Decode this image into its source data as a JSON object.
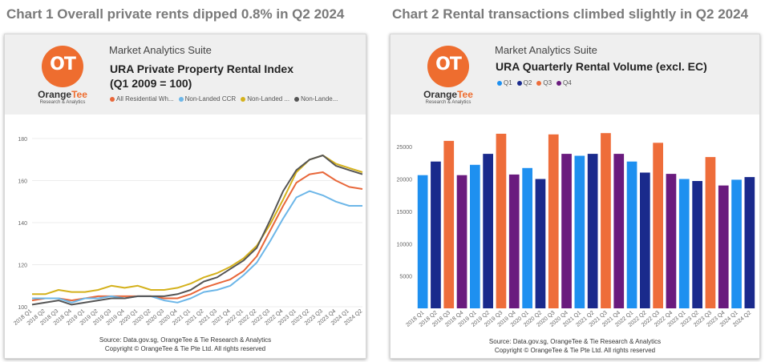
{
  "headings": {
    "chart1": "Chart 1 Overall private rents dipped 0.8% in Q2 2024",
    "chart2": "Chart 2 Rental transactions climbed slightly in Q2 2024"
  },
  "brand": {
    "suite": "Market Analytics Suite",
    "logo_mark": "OT",
    "logo_orange": "Orange",
    "logo_tee": "Tee",
    "logo_sub": "Research & Analytics",
    "color": "#ee6d2f"
  },
  "panel1": {
    "title_line1": "URA Private Property Rental Index",
    "title_line2": "(Q1 2009 = 100)",
    "footer_source": "Source: Data.gov.sg, OrangeTee & Tie Research & Analytics",
    "footer_copyright": "Copyright © OrangeTee & Tie Pte Ltd. All rights reserved"
  },
  "panel2": {
    "title": "URA Quarterly Rental Volume (excl. EC)",
    "footer_source": "Source: Data.gov.sg, OrangeTee & Tie Research & Analytics",
    "footer_copyright": "Copyright © OrangeTee & Tie Pte Ltd. All rights reserved"
  },
  "chart_data": [
    {
      "type": "line",
      "title": "URA Private Property Rental Index",
      "subtitle": "(Q1 2009 = 100)",
      "x": [
        "2018 Q1",
        "2018 Q2",
        "2018 Q3",
        "2018 Q4",
        "2019 Q1",
        "2019 Q2",
        "2019 Q3",
        "2019 Q4",
        "2020 Q1",
        "2020 Q2",
        "2020 Q3",
        "2020 Q4",
        "2021 Q1",
        "2021 Q2",
        "2021 Q3",
        "2021 Q4",
        "2022 Q1",
        "2022 Q2",
        "2022 Q3",
        "2022 Q4",
        "2023 Q1",
        "2023 Q2",
        "2023 Q3",
        "2023 Q4",
        "2024 Q1",
        "2024 Q2"
      ],
      "ylim": [
        100,
        180
      ],
      "yticks": [
        100,
        120,
        140,
        160,
        180
      ],
      "series": [
        {
          "name": "All Residential Wh...",
          "color": "#e8673a",
          "values": [
            103,
            104,
            104,
            103,
            104,
            105,
            105,
            105,
            105,
            105,
            104,
            104,
            106,
            109,
            111,
            113,
            117,
            124,
            136,
            148,
            159,
            163,
            164,
            160,
            157,
            156
          ]
        },
        {
          "name": "Non-Landed CCR",
          "color": "#6cb6e8",
          "values": [
            104,
            104,
            104,
            102,
            104,
            104,
            105,
            104,
            105,
            105,
            103,
            102,
            104,
            107,
            108,
            110,
            115,
            121,
            131,
            142,
            152,
            155,
            153,
            150,
            148,
            148
          ]
        },
        {
          "name": "Non-Landed ...",
          "color": "#d4b11c",
          "values": [
            106,
            106,
            108,
            107,
            107,
            108,
            110,
            109,
            110,
            108,
            108,
            109,
            111,
            114,
            116,
            119,
            123,
            129,
            139,
            151,
            164,
            170,
            172,
            168,
            166,
            164
          ]
        },
        {
          "name": "Non-Lande...",
          "color": "#555555",
          "values": [
            101,
            102,
            103,
            101,
            102,
            103,
            104,
            104,
            105,
            105,
            105,
            106,
            108,
            112,
            114,
            118,
            122,
            128,
            141,
            155,
            165,
            170,
            172,
            167,
            165,
            163
          ]
        }
      ]
    },
    {
      "type": "bar",
      "title": "URA Quarterly Rental Volume (excl. EC)",
      "categories": [
        "2018 Q1",
        "2018 Q2",
        "2018 Q3",
        "2018 Q4",
        "2019 Q1",
        "2019 Q2",
        "2019 Q3",
        "2019 Q4",
        "2020 Q1",
        "2020 Q2",
        "2020 Q3",
        "2020 Q4",
        "2021 Q1",
        "2021 Q2",
        "2021 Q3",
        "2021 Q4",
        "2022 Q1",
        "2022 Q2",
        "2022 Q3",
        "2022 Q4",
        "2023 Q1",
        "2023 Q2",
        "2023 Q3",
        "2023 Q4",
        "2024 Q1",
        "2024 Q2"
      ],
      "values": [
        20600,
        22700,
        25900,
        20600,
        22200,
        23900,
        27000,
        20700,
        21700,
        20000,
        26900,
        23900,
        23600,
        23900,
        27100,
        23900,
        22700,
        21000,
        25600,
        20800,
        20000,
        19700,
        23400,
        19000,
        19900,
        20300
      ],
      "quarter": [
        "Q1",
        "Q2",
        "Q3",
        "Q4",
        "Q1",
        "Q2",
        "Q3",
        "Q4",
        "Q1",
        "Q2",
        "Q3",
        "Q4",
        "Q1",
        "Q2",
        "Q3",
        "Q4",
        "Q1",
        "Q2",
        "Q3",
        "Q4",
        "Q1",
        "Q2",
        "Q3",
        "Q4",
        "Q1",
        "Q2"
      ],
      "legend": [
        {
          "name": "Q1",
          "color": "#1e90f0"
        },
        {
          "name": "Q2",
          "color": "#1a2a8c"
        },
        {
          "name": "Q3",
          "color": "#ee6d3a"
        },
        {
          "name": "Q4",
          "color": "#6a1b7e"
        }
      ],
      "ylim": [
        0,
        27500
      ],
      "yticks": [
        5000,
        10000,
        15000,
        20000,
        25000
      ]
    }
  ]
}
